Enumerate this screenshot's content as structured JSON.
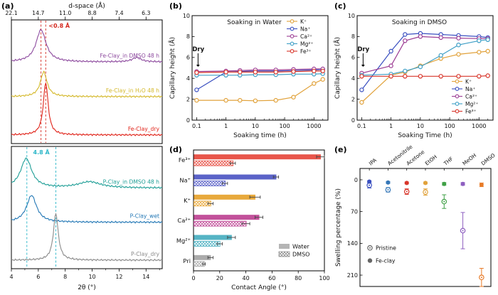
{
  "figure": {
    "panel_labels": {
      "a": "(a)",
      "b": "(b)",
      "c": "(c)",
      "d": "(d)",
      "e": "(e)"
    }
  },
  "chart_data": [
    {
      "id": "a",
      "type": "line",
      "subtype": "xrd",
      "top_axis": {
        "title": "d-space (Å)",
        "tick_labels": [
          "22.1",
          "14.7",
          "11.0",
          "8.8",
          "7.4",
          "6.3"
        ],
        "tick_positions": [
          4,
          6,
          8,
          10,
          12,
          14
        ]
      },
      "x_axis": {
        "label": "2θ (°)",
        "min": 4,
        "max": 15.2,
        "ticks": [
          4,
          6,
          8,
          10,
          12,
          14
        ]
      },
      "subplots": [
        {
          "annotation": {
            "text": "<0.8 Å",
            "color": "#d42a20"
          },
          "dashed_lines": {
            "x": [
              6.2,
              6.55
            ],
            "color": "#d42a20"
          },
          "curves": [
            {
              "label": "Fe-Clay_in DMSO 48 h",
              "color": "#8d4a9e",
              "baseline": 0.66,
              "peaks": [
                {
                  "center": 6.2,
                  "width": 0.45,
                  "height": 0.26
                },
                {
                  "center": 13.3,
                  "width": 0.4,
                  "height": 0.035
                }
              ]
            },
            {
              "label": "Fe-Clay_in H₂O 48 h",
              "color": "#d4b82a",
              "baseline": 0.38,
              "peaks": [
                {
                  "center": 6.4,
                  "width": 0.3,
                  "height": 0.2
                }
              ]
            },
            {
              "label": "Fe-Clay_dry",
              "color": "#e02218",
              "baseline": 0.07,
              "peaks": [
                {
                  "center": 6.55,
                  "width": 0.22,
                  "height": 0.42
                }
              ]
            }
          ]
        },
        {
          "annotation": {
            "text": "4.8 Å",
            "color": "#2bb6c8"
          },
          "dashed_lines": {
            "x": [
              5.15,
              7.3
            ],
            "color": "#2bb6c8"
          },
          "curves": [
            {
              "label": "P-Clay_in DMSO 48 h",
              "color": "#1e9e96",
              "baseline": 0.66,
              "peaks": [
                {
                  "center": 5.1,
                  "width": 0.5,
                  "height": 0.24
                },
                {
                  "center": 9.8,
                  "width": 1.0,
                  "height": 0.05
                }
              ]
            },
            {
              "label": "P-Clay_wet",
              "color": "#2277b5",
              "baseline": 0.38,
              "peaks": [
                {
                  "center": 5.5,
                  "width": 0.45,
                  "height": 0.22
                }
              ]
            },
            {
              "label": "P-Clay_dry",
              "color": "#8a8a8a",
              "baseline": 0.07,
              "peaks": [
                {
                  "center": 7.3,
                  "width": 0.22,
                  "height": 0.38
                }
              ]
            }
          ]
        }
      ]
    },
    {
      "id": "b",
      "type": "line",
      "title": "Soaking in Water",
      "x_axis": {
        "label": "Soaking time (h)",
        "scale": "log",
        "min": 0.07,
        "max": 3000,
        "tick_labels": [
          "0.1",
          "1",
          "10",
          "100",
          "1000"
        ],
        "tick_values": [
          0.1,
          1,
          10,
          100,
          1000
        ]
      },
      "y_axis": {
        "label": "Capillary height (Å)",
        "min": 0,
        "max": 10,
        "ticks": [
          0,
          2,
          4,
          6,
          8,
          10
        ]
      },
      "annotation": {
        "text": "Dry",
        "x": 0.1,
        "y": 6.6,
        "arrow_to_y": 5.1
      },
      "legend_position": "top-right",
      "x": [
        0.1,
        1,
        3,
        10,
        50,
        200,
        1000,
        2000
      ],
      "series": [
        {
          "name": "K⁺",
          "color": "#e1a23b",
          "values": [
            1.9,
            1.9,
            1.9,
            1.85,
            1.9,
            2.2,
            3.5,
            3.9
          ]
        },
        {
          "name": "Na⁺",
          "color": "#3a4fc0",
          "values": [
            2.9,
            4.6,
            4.65,
            4.7,
            4.7,
            4.75,
            4.8,
            4.85
          ]
        },
        {
          "name": "Ca²⁺",
          "color": "#9c3d94",
          "values": [
            4.65,
            4.7,
            4.75,
            4.8,
            4.8,
            4.85,
            4.9,
            4.9
          ]
        },
        {
          "name": "Mg²⁺",
          "color": "#3e9fc6",
          "values": [
            4.3,
            4.3,
            4.3,
            4.35,
            4.35,
            4.4,
            4.4,
            4.45
          ]
        },
        {
          "name": "Fe³⁺",
          "color": "#d8352a",
          "values": [
            4.55,
            4.6,
            4.6,
            4.6,
            4.6,
            4.65,
            4.7,
            4.7
          ]
        }
      ]
    },
    {
      "id": "c",
      "type": "line",
      "title": "Soaking in DMSO",
      "x_axis": {
        "label": "Soaking Time (h)",
        "scale": "log",
        "min": 0.07,
        "max": 3000,
        "tick_labels": [
          "0.1",
          "1",
          "10",
          "100",
          "1000"
        ],
        "tick_values": [
          0.1,
          1,
          10,
          100,
          1000
        ]
      },
      "y_axis": {
        "label": "Capillary height (Å)",
        "min": 0,
        "max": 10,
        "ticks": [
          0,
          2,
          4,
          6,
          8,
          10
        ]
      },
      "annotation": {
        "text": "Dry",
        "x": 0.1,
        "y": 6.6,
        "arrow_to_y": 5.1
      },
      "legend_position": "bottom-right",
      "x": [
        0.1,
        1,
        3,
        10,
        50,
        200,
        1000,
        2000
      ],
      "series": [
        {
          "name": "K⁺",
          "color": "#e1a23b",
          "values": [
            1.7,
            4.3,
            4.6,
            5.2,
            5.9,
            6.3,
            6.5,
            6.6
          ]
        },
        {
          "name": "Na⁺",
          "color": "#3a4fc0",
          "values": [
            2.9,
            6.6,
            8.2,
            8.3,
            8.2,
            8.1,
            8.0,
            7.9
          ]
        },
        {
          "name": "Ca²⁺",
          "color": "#9c3d94",
          "values": [
            4.5,
            5.2,
            7.6,
            8.0,
            7.9,
            7.85,
            7.8,
            7.8
          ]
        },
        {
          "name": "Mg²⁺",
          "color": "#3e9fc6",
          "values": [
            4.3,
            4.4,
            4.7,
            5.1,
            6.2,
            7.2,
            7.6,
            7.7
          ]
        },
        {
          "name": "Fe³⁺",
          "color": "#d8352a",
          "values": [
            4.2,
            4.2,
            4.2,
            4.2,
            4.2,
            4.2,
            4.2,
            4.25
          ]
        }
      ]
    },
    {
      "id": "d",
      "type": "bar",
      "orientation": "horizontal",
      "x_axis": {
        "label": "Contact Angle (°)",
        "min": 0,
        "max": 100,
        "ticks": [
          0,
          20,
          40,
          60,
          80,
          100
        ]
      },
      "categories": [
        "Fe³⁺",
        "Na⁺",
        "K⁺",
        "Ca²⁺",
        "Mg²⁺",
        "Pri"
      ],
      "category_colors": [
        "#e8554a",
        "#5b63c8",
        "#e8a93c",
        "#c2509a",
        "#55b4c4",
        "#ababab"
      ],
      "series": [
        {
          "name": "Water",
          "style": "solid",
          "values": [
            97,
            63,
            47,
            50,
            29,
            13
          ],
          "errors": [
            3,
            2,
            4,
            3,
            3,
            2
          ]
        },
        {
          "name": "DMSO",
          "style": "hatched",
          "values": [
            30,
            24,
            13,
            40,
            20,
            8
          ],
          "errors": [
            2,
            2,
            2,
            3,
            2,
            1
          ]
        }
      ]
    },
    {
      "id": "e",
      "type": "scatter",
      "y_axis": {
        "label": "Swelling percentage (%)",
        "min": -25,
        "max": 235,
        "ticks": [
          0,
          70,
          140,
          210
        ],
        "inverted": true
      },
      "solvents": [
        "IPA",
        "Acetonitrile",
        "Acetone",
        "EtOH",
        "THF",
        "MeOH",
        "DMSO"
      ],
      "colors": [
        "#3a4fc0",
        "#3577b8",
        "#d8352a",
        "#e1a23b",
        "#3fa046",
        "#8e5fc0",
        "#e87b28"
      ],
      "series": [
        {
          "name": "Pristine",
          "marker": "open-dot",
          "values": [
            12,
            22,
            26,
            27,
            48,
            112,
            215
          ],
          "errors": [
            6,
            5,
            6,
            7,
            15,
            40,
            20
          ]
        },
        {
          "name": "Fe-clay",
          "marker": "filled",
          "values": [
            4,
            6,
            7,
            7,
            9,
            9,
            11
          ],
          "errors": [
            2,
            2,
            2,
            2,
            3,
            3,
            4
          ]
        }
      ]
    }
  ]
}
